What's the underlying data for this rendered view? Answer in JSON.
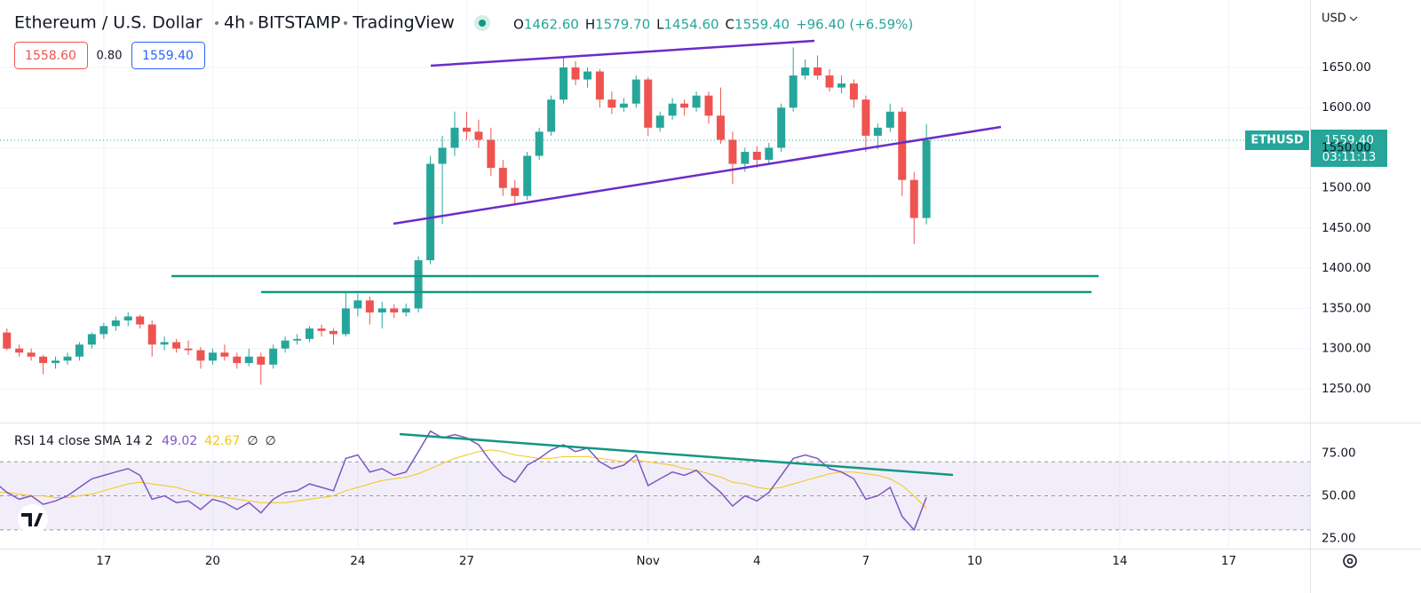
{
  "header": {
    "symbol": "Ethereum / U.S. Dollar",
    "interval": "4h",
    "exchange": "BITSTAMP",
    "source": "TradingView",
    "ohlc_labels": [
      "O",
      "H",
      "L",
      "C"
    ],
    "open": "1462.60",
    "high": "1579.70",
    "low": "1454.60",
    "close": "1559.40",
    "change": "+96.40 (+6.59%)",
    "bid": "1558.60",
    "spread": "0.80",
    "currency": "USD",
    "ticker": "ETHUSD",
    "countdown": "03:11:13"
  },
  "chart_data": [
    {
      "type": "candlestick",
      "up_color": "#26a69a",
      "down_color": "#ef5350",
      "grid": true,
      "xlim": [
        0.14,
        36.24
      ],
      "ylim": [
        1209,
        1734
      ],
      "yticks": [
        {
          "value": 1250,
          "label": "1250.00"
        },
        {
          "value": 1300,
          "label": "1300.00"
        },
        {
          "value": 1350,
          "label": "1350.00"
        },
        {
          "value": 1400,
          "label": "1400.00"
        },
        {
          "value": 1450,
          "label": "1450.00"
        },
        {
          "value": 1500,
          "label": "1500.00"
        },
        {
          "value": 1550,
          "label": "1550.00"
        },
        {
          "value": 1600,
          "label": "1600.00"
        },
        {
          "value": 1650,
          "label": "1650.00"
        }
      ],
      "x": [
        0,
        0.33,
        0.67,
        1,
        1.33,
        1.67,
        2,
        2.33,
        2.67,
        3,
        3.33,
        3.67,
        4,
        4.33,
        4.67,
        5,
        5.33,
        5.67,
        6,
        6.33,
        6.67,
        7,
        7.33,
        7.67,
        8,
        8.33,
        8.67,
        9,
        9.33,
        9.67,
        10,
        10.33,
        10.67,
        11,
        11.33,
        11.67,
        12,
        12.33,
        12.67,
        13,
        13.33,
        13.67,
        14,
        14.33,
        14.67,
        15,
        15.33,
        15.67,
        16,
        16.33,
        16.67,
        17,
        17.33,
        17.67,
        18,
        18.33,
        18.67,
        19,
        19.33,
        19.67,
        20,
        20.33,
        20.67,
        21,
        21.33,
        21.67,
        22,
        22.33,
        22.67,
        23,
        23.33,
        23.67,
        24,
        24.33,
        24.67,
        25,
        25.33,
        25.67
      ],
      "open": [
        1335,
        1320,
        1300,
        1295,
        1290,
        1282,
        1285,
        1290,
        1305,
        1318,
        1328,
        1335,
        1340,
        1330,
        1305,
        1308,
        1300,
        1298,
        1285,
        1295,
        1290,
        1282,
        1290,
        1280,
        1300,
        1310,
        1312,
        1325,
        1322,
        1318,
        1350,
        1360,
        1345,
        1350,
        1345,
        1350,
        1410,
        1530,
        1550,
        1575,
        1570,
        1560,
        1525,
        1500,
        1490,
        1540,
        1570,
        1610,
        1650,
        1635,
        1645,
        1610,
        1600,
        1605,
        1635,
        1575,
        1590,
        1605,
        1600,
        1615,
        1590,
        1560,
        1530,
        1545,
        1535,
        1550,
        1600,
        1640,
        1650,
        1640,
        1625,
        1630,
        1610,
        1565,
        1575,
        1595,
        1510,
        1462.6
      ],
      "high": [
        1345,
        1325,
        1305,
        1300,
        1292,
        1290,
        1295,
        1308,
        1320,
        1332,
        1340,
        1345,
        1342,
        1335,
        1315,
        1312,
        1310,
        1302,
        1300,
        1305,
        1295,
        1300,
        1295,
        1305,
        1315,
        1318,
        1328,
        1330,
        1325,
        1370,
        1368,
        1365,
        1358,
        1355,
        1356,
        1415,
        1540,
        1565,
        1595,
        1595,
        1585,
        1575,
        1535,
        1510,
        1545,
        1575,
        1615,
        1662,
        1658,
        1650,
        1648,
        1620,
        1612,
        1640,
        1638,
        1595,
        1612,
        1610,
        1620,
        1620,
        1625,
        1570,
        1550,
        1552,
        1556,
        1605,
        1675,
        1660,
        1665,
        1648,
        1640,
        1635,
        1615,
        1580,
        1605,
        1600,
        1520,
        1579.7
      ],
      "low": [
        1315,
        1298,
        1290,
        1285,
        1268,
        1275,
        1280,
        1285,
        1300,
        1312,
        1322,
        1328,
        1325,
        1290,
        1298,
        1295,
        1292,
        1275,
        1280,
        1285,
        1275,
        1278,
        1255,
        1275,
        1295,
        1305,
        1308,
        1315,
        1305,
        1315,
        1340,
        1330,
        1325,
        1338,
        1340,
        1345,
        1405,
        1455,
        1540,
        1560,
        1550,
        1515,
        1490,
        1480,
        1485,
        1535,
        1565,
        1605,
        1628,
        1625,
        1600,
        1592,
        1595,
        1600,
        1565,
        1570,
        1585,
        1590,
        1595,
        1580,
        1555,
        1505,
        1520,
        1525,
        1530,
        1545,
        1595,
        1635,
        1635,
        1620,
        1618,
        1600,
        1545,
        1548,
        1570,
        1490,
        1430,
        1454.6
      ],
      "close": [
        1320,
        1300,
        1295,
        1290,
        1282,
        1285,
        1290,
        1305,
        1318,
        1328,
        1335,
        1340,
        1330,
        1305,
        1308,
        1300,
        1298,
        1285,
        1295,
        1290,
        1282,
        1290,
        1280,
        1300,
        1310,
        1312,
        1325,
        1322,
        1318,
        1350,
        1360,
        1345,
        1350,
        1345,
        1350,
        1410,
        1530,
        1550,
        1575,
        1570,
        1560,
        1525,
        1500,
        1490,
        1540,
        1570,
        1610,
        1650,
        1635,
        1645,
        1610,
        1600,
        1605,
        1635,
        1575,
        1590,
        1605,
        1600,
        1615,
        1590,
        1560,
        1530,
        1545,
        1535,
        1550,
        1600,
        1640,
        1650,
        1640,
        1625,
        1630,
        1610,
        1565,
        1575,
        1595,
        1510,
        1462.6,
        1559.4
      ]
    },
    {
      "type": "line",
      "title": "RSI 14 close SMA 14 2",
      "legend_extra": [
        "∅",
        "∅"
      ],
      "band_color": "#7e57c2",
      "xlim": [
        0.14,
        36.24
      ],
      "ylim": [
        19,
        92
      ],
      "levels": [
        30,
        50,
        70
      ],
      "yticks": [
        {
          "value": 25,
          "label": "25.00"
        },
        {
          "value": 50,
          "label": "50.00"
        },
        {
          "value": 75,
          "label": "75.00"
        }
      ],
      "xticks": [
        {
          "value": 3,
          "label": "17"
        },
        {
          "value": 6,
          "label": "20"
        },
        {
          "value": 10,
          "label": "24"
        },
        {
          "value": 13,
          "label": "27"
        },
        {
          "value": 18,
          "label": "Nov"
        },
        {
          "value": 21,
          "label": "4"
        },
        {
          "value": 24,
          "label": "7"
        },
        {
          "value": 27,
          "label": "10"
        },
        {
          "value": 31,
          "label": "14"
        },
        {
          "value": 34,
          "label": "17"
        }
      ],
      "series": [
        {
          "name": "RSI",
          "color": "#7e57c2",
          "values": [
            58,
            52,
            48,
            50,
            45,
            47,
            50,
            55,
            60,
            62,
            64,
            66,
            62,
            48,
            50,
            46,
            47,
            42,
            48,
            46,
            42,
            46,
            40,
            48,
            52,
            53,
            57,
            55,
            53,
            72,
            74,
            64,
            66,
            62,
            64,
            76,
            88,
            84,
            86,
            84,
            80,
            70,
            62,
            58,
            68,
            72,
            77,
            80,
            76,
            78,
            70,
            66,
            68,
            74,
            56,
            60,
            64,
            62,
            65,
            58,
            52,
            44,
            50,
            47,
            52,
            62,
            72,
            74,
            72,
            66,
            64,
            60,
            48,
            50,
            55,
            38,
            30,
            49.02
          ]
        },
        {
          "name": "SMA",
          "color": "#f5c518",
          "values": [
            52,
            52,
            51,
            50,
            50,
            49,
            49,
            50,
            51,
            53,
            55,
            57,
            58,
            57,
            56,
            55,
            53,
            51,
            50,
            49,
            48,
            47,
            46,
            46,
            46,
            47,
            48,
            49,
            50,
            53,
            55,
            57,
            59,
            60,
            61,
            63,
            66,
            69,
            72,
            74,
            76,
            77,
            76,
            74,
            73,
            72,
            72,
            73,
            73,
            73,
            72,
            71,
            70,
            71,
            70,
            69,
            68,
            66,
            65,
            63,
            61,
            58,
            57,
            55,
            54,
            55,
            57,
            59,
            61,
            63,
            64,
            64,
            63,
            62,
            60,
            56,
            50,
            42.67
          ]
        }
      ]
    }
  ]
}
